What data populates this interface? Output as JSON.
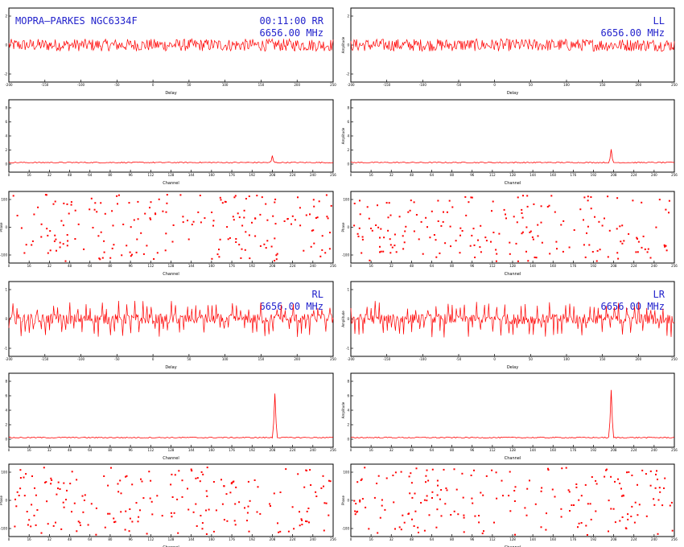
{
  "colors": {
    "trace": "#ff0000",
    "header": "#2222cc",
    "frame": "#000000"
  },
  "chart_data": [
    {
      "type": "line",
      "panel": "RR-delay",
      "source": "MOPRA–PARKES NGC6334F",
      "time": "00:11:00",
      "pol": "RR",
      "freq": "6656.00 MHz",
      "xlabel": "Delay",
      "ylabel": "",
      "x_ticks": [
        "-200",
        "-150",
        "-100",
        "-50",
        "0",
        "50",
        "100",
        "150",
        "200",
        "250"
      ],
      "y_ticks": [
        "2",
        "0",
        "-2"
      ],
      "noise": {
        "level": 0.0,
        "amp": 0.55,
        "spike": 0
      }
    },
    {
      "type": "line",
      "panel": "LL-delay",
      "pol": "LL",
      "freq": "6656.00 MHz",
      "xlabel": "Delay",
      "ylabel": "Amplitude",
      "x_ticks": [
        "-200",
        "-150",
        "-100",
        "-50",
        "0",
        "50",
        "100",
        "150",
        "200",
        "250"
      ],
      "y_ticks": [
        "2",
        "0",
        "-2"
      ],
      "noise": {
        "level": 0.0,
        "amp": 0.55,
        "spike": 0
      }
    },
    {
      "type": "line",
      "panel": "RR-amplitude",
      "xlabel": "Channel",
      "ylabel": "",
      "x_ticks": [
        "0",
        "16",
        "32",
        "48",
        "64",
        "80",
        "96",
        "112",
        "128",
        "144",
        "160",
        "176",
        "192",
        "208",
        "224",
        "240",
        "256"
      ],
      "y_ticks": [
        "8",
        "6",
        "4",
        "2",
        "0"
      ],
      "peak": {
        "channel": 208,
        "value": 1.2
      }
    },
    {
      "type": "line",
      "panel": "LL-amplitude",
      "xlabel": "Channel",
      "ylabel": "Amplitude",
      "x_ticks": [
        "0",
        "16",
        "32",
        "48",
        "64",
        "80",
        "96",
        "112",
        "128",
        "144",
        "160",
        "176",
        "192",
        "208",
        "224",
        "240",
        "256"
      ],
      "y_ticks": [
        "8",
        "6",
        "4",
        "2",
        "0"
      ],
      "peak": {
        "channel": 206,
        "value": 2.1
      }
    },
    {
      "type": "scatter",
      "panel": "RR-phase",
      "xlabel": "Channel",
      "ylabel": "Phase",
      "x_ticks": [
        "0",
        "16",
        "32",
        "48",
        "64",
        "80",
        "96",
        "112",
        "128",
        "144",
        "160",
        "176",
        "192",
        "208",
        "224",
        "240",
        "256"
      ],
      "y_ticks": [
        "100",
        "0",
        "-100"
      ],
      "ylim": [
        -180,
        180
      ],
      "n_points": 200
    },
    {
      "type": "scatter",
      "panel": "LL-phase",
      "xlabel": "Channel",
      "ylabel": "Phase",
      "x_ticks": [
        "0",
        "16",
        "32",
        "48",
        "64",
        "80",
        "96",
        "112",
        "128",
        "144",
        "160",
        "176",
        "192",
        "208",
        "224",
        "240",
        "256"
      ],
      "y_ticks": [
        "100",
        "0",
        "-100"
      ],
      "ylim": [
        -180,
        180
      ],
      "n_points": 200
    },
    {
      "type": "line",
      "panel": "RL-delay",
      "pol": "RL",
      "freq": "6656.00 MHz",
      "xlabel": "Delay",
      "ylabel": "",
      "x_ticks": [
        "-200",
        "-150",
        "-100",
        "-50",
        "0",
        "50",
        "100",
        "150",
        "200",
        "250"
      ],
      "y_ticks": [
        "1",
        "0",
        "-1"
      ],
      "noise": {
        "level": 0.0,
        "amp": 0.45,
        "spike": 1
      }
    },
    {
      "type": "line",
      "panel": "LR-delay",
      "pol": "LR",
      "freq": "6656.00 MHz",
      "xlabel": "Delay",
      "ylabel": "Amplitude",
      "x_ticks": [
        "-200",
        "-150",
        "-100",
        "-50",
        "0",
        "50",
        "100",
        "150",
        "200",
        "250"
      ],
      "y_ticks": [
        "1",
        "0",
        "-1"
      ],
      "noise": {
        "level": 0.0,
        "amp": 0.45,
        "spike": 1
      }
    },
    {
      "type": "line",
      "panel": "RL-amplitude",
      "xlabel": "Channel",
      "ylabel": "",
      "x_ticks": [
        "0",
        "16",
        "32",
        "48",
        "64",
        "80",
        "96",
        "112",
        "128",
        "144",
        "160",
        "176",
        "192",
        "208",
        "224",
        "240",
        "256"
      ],
      "y_ticks": [
        "8",
        "6",
        "4",
        "2",
        "0"
      ],
      "peak": {
        "channel": 210,
        "value": 6.3
      }
    },
    {
      "type": "line",
      "panel": "LR-amplitude",
      "xlabel": "Channel",
      "ylabel": "Amplitude",
      "x_ticks": [
        "0",
        "16",
        "32",
        "48",
        "64",
        "80",
        "96",
        "112",
        "128",
        "144",
        "160",
        "176",
        "192",
        "208",
        "224",
        "240",
        "256"
      ],
      "y_ticks": [
        "8",
        "6",
        "4",
        "2",
        "0"
      ],
      "peak": {
        "channel": 206,
        "value": 6.8
      }
    },
    {
      "type": "scatter",
      "panel": "RL-phase",
      "xlabel": "Channel",
      "ylabel": "Phase",
      "x_ticks": [
        "0",
        "16",
        "32",
        "48",
        "64",
        "80",
        "96",
        "112",
        "128",
        "144",
        "160",
        "176",
        "192",
        "208",
        "224",
        "240",
        "256"
      ],
      "y_ticks": [
        "100",
        "0",
        "-100"
      ],
      "ylim": [
        -180,
        180
      ],
      "n_points": 200
    },
    {
      "type": "scatter",
      "panel": "LR-phase",
      "xlabel": "Channel",
      "ylabel": "Phase",
      "x_ticks": [
        "0",
        "16",
        "32",
        "48",
        "64",
        "80",
        "96",
        "112",
        "128",
        "144",
        "160",
        "176",
        "192",
        "208",
        "224",
        "240",
        "256"
      ],
      "y_ticks": [
        "100",
        "0",
        "-100"
      ],
      "ylim": [
        -180,
        180
      ],
      "n_points": 200
    }
  ]
}
